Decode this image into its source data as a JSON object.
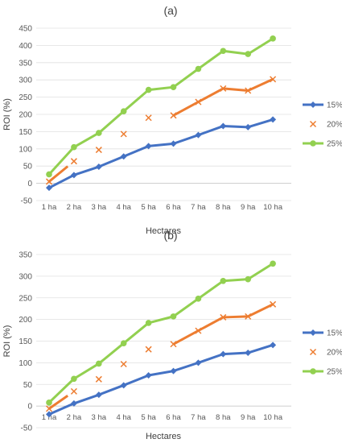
{
  "chart_data": [
    {
      "type": "line",
      "title": "(a)",
      "xlabel": "Hectares",
      "ylabel": "ROI (%)",
      "categories": [
        "1 ha",
        "2 ha",
        "3 ha",
        "4 ha",
        "5 ha",
        "6 ha",
        "7 ha",
        "8 ha",
        "9 ha",
        "10 ha"
      ],
      "ylim": [
        -50,
        450
      ],
      "yticks": [
        -50,
        0,
        50,
        100,
        150,
        200,
        250,
        300,
        350,
        400,
        450
      ],
      "grid": true,
      "legend_position": "right",
      "series": [
        {
          "name": "15%",
          "color": "#4472C4",
          "marker": "diamond",
          "style": "line",
          "values": [
            -13,
            24,
            48,
            78,
            108,
            115,
            140,
            166,
            163,
            185
          ]
        },
        {
          "name": "20%",
          "color": "#ED7D31",
          "marker": "x",
          "style": "mixed",
          "values": [
            5,
            64,
            97,
            143,
            190,
            197,
            236,
            275,
            269,
            302
          ]
        },
        {
          "name": "25%",
          "color": "#92D050",
          "marker": "circle",
          "style": "line",
          "values": [
            26,
            105,
            146,
            209,
            271,
            279,
            332,
            384,
            375,
            420
          ]
        }
      ]
    },
    {
      "type": "line",
      "title": "(b)",
      "xlabel": "Hectares",
      "ylabel": "ROI (%)",
      "categories": [
        "1 ha",
        "2 ha",
        "3 ha",
        "4 ha",
        "5 ha",
        "6 ha",
        "7 ha",
        "8 ha",
        "9 ha",
        "10 ha"
      ],
      "ylim": [
        -50,
        350
      ],
      "yticks": [
        -50,
        0,
        50,
        100,
        150,
        200,
        250,
        300,
        350
      ],
      "grid": true,
      "legend_position": "right",
      "series": [
        {
          "name": "15%",
          "color": "#4472C4",
          "marker": "diamond",
          "style": "line",
          "values": [
            -19,
            6,
            26,
            48,
            71,
            81,
            100,
            120,
            123,
            141
          ]
        },
        {
          "name": "20%",
          "color": "#ED7D31",
          "marker": "x",
          "style": "mixed",
          "values": [
            -6,
            34,
            62,
            97,
            131,
            143,
            174,
            205,
            207,
            235
          ]
        },
        {
          "name": "25%",
          "color": "#92D050",
          "marker": "circle",
          "style": "line",
          "values": [
            8,
            63,
            98,
            145,
            192,
            207,
            248,
            289,
            293,
            329
          ]
        }
      ]
    }
  ]
}
